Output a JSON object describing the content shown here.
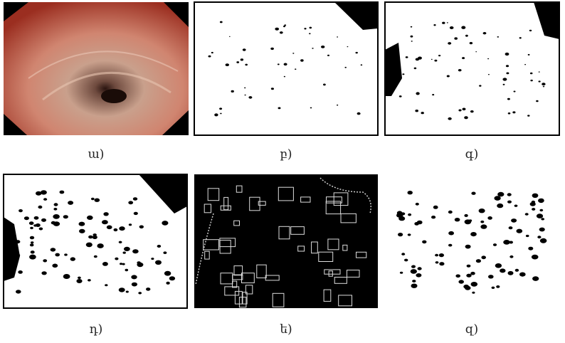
{
  "panels": [
    {
      "caption": "ա)"
    },
    {
      "caption": "բ)"
    },
    {
      "caption": "գ)"
    },
    {
      "caption": "դ)"
    },
    {
      "caption": "ե)"
    },
    {
      "caption": "զ)"
    }
  ]
}
